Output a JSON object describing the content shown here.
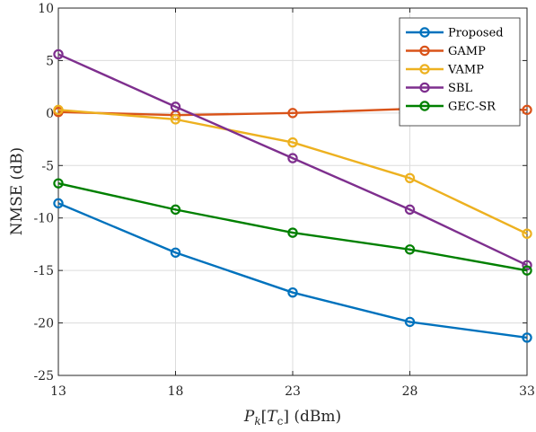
{
  "chart_data": {
    "type": "line",
    "x": [
      13,
      18,
      23,
      28,
      33
    ],
    "series": [
      {
        "name": "Proposed",
        "values": [
          -8.6,
          -13.3,
          -17.1,
          -19.9,
          -21.4
        ],
        "color": "#0072BD"
      },
      {
        "name": "GAMP",
        "values": [
          0.1,
          -0.2,
          0.0,
          0.4,
          0.3
        ],
        "color": "#D95319"
      },
      {
        "name": "VAMP",
        "values": [
          0.3,
          -0.6,
          -2.8,
          -6.2,
          -11.5
        ],
        "color": "#EDB120"
      },
      {
        "name": "SBL",
        "values": [
          5.6,
          0.6,
          -4.3,
          -9.2,
          -14.5
        ],
        "color": "#7E2F8E"
      },
      {
        "name": "GEC-SR",
        "values": [
          -6.7,
          -9.2,
          -11.4,
          -13.0,
          -15.0
        ],
        "color": "#008000"
      }
    ],
    "xticks": [
      "13",
      "18",
      "23",
      "28",
      "33"
    ],
    "yticks": [
      "10",
      "5",
      "0",
      "-5",
      "-10",
      "-15",
      "-20",
      "-25"
    ],
    "xlim": [
      13,
      33
    ],
    "ylim": [
      -25,
      10
    ],
    "ylabel": "NMSE (dB)",
    "xlabel": {
      "main": "P",
      "sub_k": "k",
      "bracket_open": "[",
      "script_t": "T",
      "sub_c": "c",
      "bracket_close": "]",
      "unit": " (dBm)"
    },
    "grid": true,
    "legend_position": "top-right"
  }
}
